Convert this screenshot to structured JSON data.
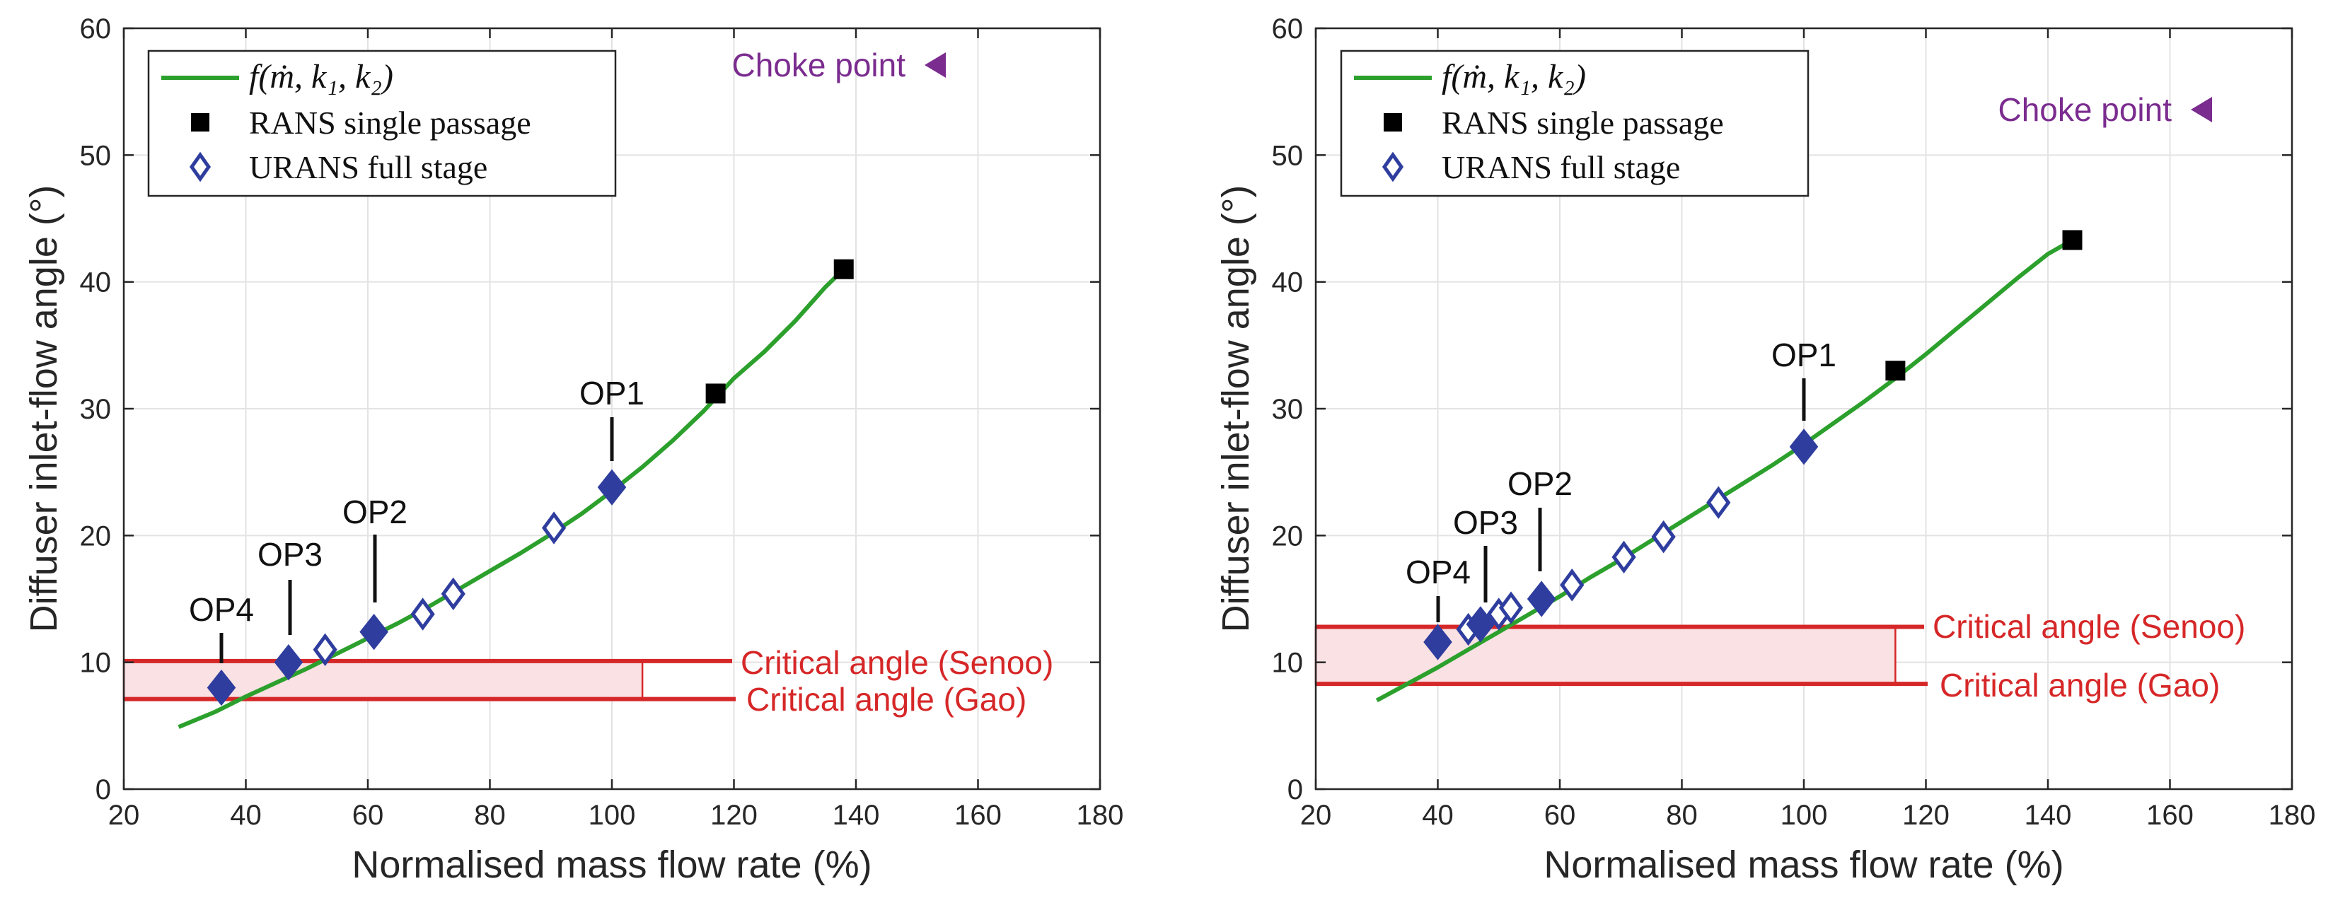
{
  "colors": {
    "curve": "#2ca02c",
    "rans": "#000000",
    "urans": "#2e3d9e",
    "critical": "#d62728",
    "band_fill": "#f9e1e4",
    "choke": "#7b2c8f",
    "grid": "#e3e3e3"
  },
  "legend": {
    "fit_label": "f(ṁ, k₁, k₂)",
    "rans_label": "RANS single passage",
    "urans_label": "URANS full stage"
  },
  "chart_data": [
    {
      "type": "scatter",
      "xlabel": "Normalised mass flow rate (%)",
      "ylabel": "Diffuser inlet-flow angle (°)",
      "xlim": [
        20,
        180
      ],
      "ylim": [
        0,
        60
      ],
      "xticks": [
        20,
        40,
        60,
        80,
        100,
        120,
        140,
        160,
        180
      ],
      "yticks": [
        0,
        10,
        20,
        30,
        40,
        50,
        60
      ],
      "grid": true,
      "legend_position": "top-left",
      "fit_curve": {
        "x": [
          29,
          35,
          40,
          45,
          50,
          55,
          60,
          65,
          70,
          75,
          80,
          85,
          90,
          95,
          100,
          105,
          110,
          115,
          120,
          125,
          130,
          135,
          138
        ],
        "y": [
          4.9,
          6.1,
          7.3,
          8.4,
          9.5,
          10.7,
          11.9,
          13.1,
          14.4,
          15.8,
          17.2,
          18.6,
          20.1,
          21.7,
          23.5,
          25.4,
          27.5,
          29.8,
          32.4,
          34.5,
          36.9,
          39.6,
          41.0
        ]
      },
      "rans_points": {
        "x": [
          117,
          138
        ],
        "y": [
          31.2,
          41.0
        ]
      },
      "urans_points": {
        "x": [
          53,
          69,
          74,
          90.5
        ],
        "y": [
          11.0,
          13.8,
          15.4,
          20.6
        ]
      },
      "operating_points": [
        {
          "label": "OP1",
          "x": 100,
          "y": 23.8
        },
        {
          "label": "OP2",
          "x": 61,
          "y": 12.4
        },
        {
          "label": "OP3",
          "x": 47,
          "y": 10.0
        },
        {
          "label": "OP4",
          "x": 36,
          "y": 8.0
        }
      ],
      "critical_angles": [
        {
          "label": "Critical angle (Senoo)",
          "value": 10.1
        },
        {
          "label": "Critical angle (Gao)",
          "value": 7.1
        }
      ],
      "band_x_end": 105,
      "choke_label": "Choke point"
    },
    {
      "type": "scatter",
      "xlabel": "Normalised mass flow rate (%)",
      "ylabel": "Diffuser inlet-flow angle (°)",
      "xlim": [
        20,
        180
      ],
      "ylim": [
        0,
        60
      ],
      "xticks": [
        20,
        40,
        60,
        80,
        100,
        120,
        140,
        160,
        180
      ],
      "yticks": [
        0,
        10,
        20,
        30,
        40,
        50,
        60
      ],
      "grid": true,
      "legend_position": "top-left",
      "fit_curve": {
        "x": [
          30,
          35,
          40,
          45,
          50,
          55,
          60,
          65,
          70,
          75,
          80,
          85,
          90,
          95,
          100,
          105,
          110,
          115,
          120,
          125,
          130,
          135,
          140,
          144
        ],
        "y": [
          7.0,
          8.3,
          9.6,
          11.0,
          12.4,
          13.8,
          15.2,
          16.7,
          18.1,
          19.6,
          21.1,
          22.6,
          24.1,
          25.6,
          27.2,
          28.9,
          30.6,
          32.4,
          34.3,
          36.3,
          38.3,
          40.3,
          42.2,
          43.3
        ]
      },
      "rans_points": {
        "x": [
          115,
          144
        ],
        "y": [
          33.0,
          43.3
        ]
      },
      "urans_points": {
        "x": [
          45,
          50,
          52,
          62,
          70.5,
          77,
          86
        ],
        "y": [
          12.6,
          13.8,
          14.3,
          16.1,
          18.3,
          19.9,
          22.6
        ]
      },
      "operating_points": [
        {
          "label": "OP1",
          "x": 100,
          "y": 27.0
        },
        {
          "label": "OP2",
          "x": 57,
          "y": 15.0
        },
        {
          "label": "OP3",
          "x": 47,
          "y": 13.0
        },
        {
          "label": "OP4",
          "x": 40,
          "y": 11.6
        }
      ],
      "critical_angles": [
        {
          "label": "Critical angle (Senoo)",
          "value": 12.8
        },
        {
          "label": "Critical angle (Gao)",
          "value": 8.3
        }
      ],
      "band_x_end": 115,
      "choke_label": "Choke point"
    }
  ]
}
